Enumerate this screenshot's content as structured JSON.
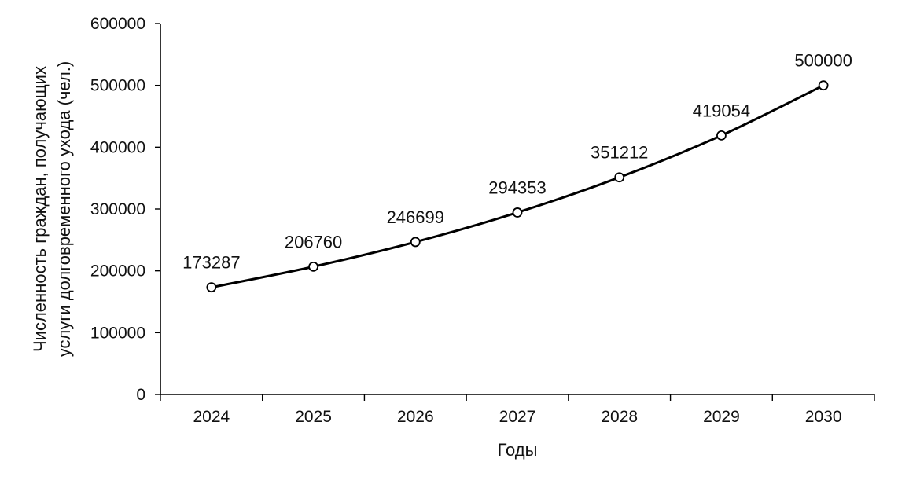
{
  "chart_data": {
    "type": "line",
    "categories": [
      "2024",
      "2025",
      "2026",
      "2027",
      "2028",
      "2029",
      "2030"
    ],
    "series": [
      {
        "values": [
          173287,
          206760,
          246699,
          294353,
          351212,
          419054,
          500000
        ]
      }
    ],
    "data_labels": [
      "173287",
      "206760",
      "246699",
      "294353",
      "351212",
      "419054",
      "500000"
    ],
    "y_tick_labels": [
      "0",
      "100000",
      "200000",
      "300000",
      "400000",
      "500000",
      "600000"
    ],
    "xlabel": "Годы",
    "ylabel_lines": [
      "Численность  граждан, получающих",
      "услуги долговременного  ухода (чел.)"
    ],
    "ylim": [
      0,
      600000
    ],
    "yticks": [
      0,
      100000,
      200000,
      300000,
      400000,
      500000,
      600000
    ],
    "grid": false,
    "legend": "none",
    "line_color": "#000000",
    "marker": "open-circle"
  }
}
